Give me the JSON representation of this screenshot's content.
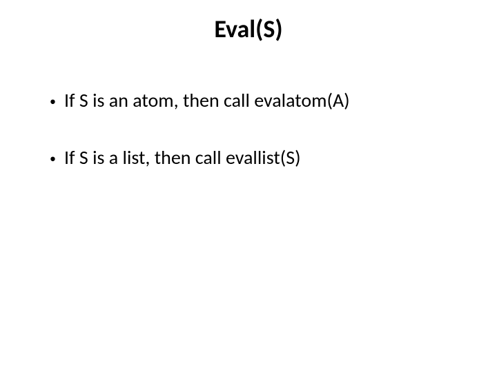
{
  "slide": {
    "background_color": "#ffffff",
    "text_color": "#000000",
    "font_family": "Calibri",
    "title": {
      "text": "Eval(S)",
      "fontsize": 36,
      "font_weight": 700
    },
    "bullets": [
      {
        "marker": "•",
        "text": "If S is an atom, then call evalatom(A)",
        "fontsize": 28
      },
      {
        "marker": "•",
        "text": "If S is a list, then call evallist(S)",
        "fontsize": 28
      }
    ]
  }
}
